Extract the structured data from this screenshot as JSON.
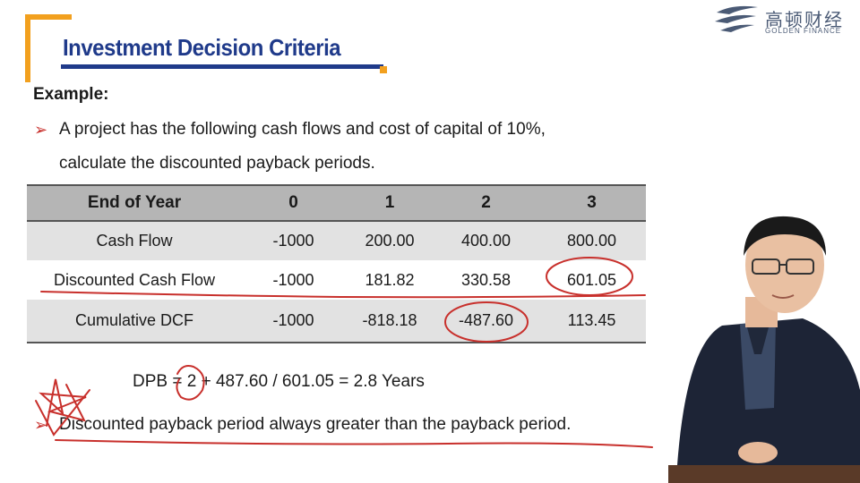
{
  "slide": {
    "title": "Investment Decision Criteria",
    "example_label": "Example:",
    "problem_line1": "A project has the following cash flows and cost of capital of 10%,",
    "problem_line2": "calculate the discounted payback periods.",
    "bullet_glyph": "➢",
    "formula": "DPB = 2 + 487.60 / 601.05 = 2.8 Years",
    "note": "Discounted payback period always greater than the payback period."
  },
  "logo": {
    "chinese": "高顿财经",
    "english": "GOLDEN FINANCE"
  },
  "table": {
    "headers": [
      "End of Year",
      "0",
      "1",
      "2",
      "3"
    ],
    "rows": [
      [
        "Cash Flow",
        "-1000",
        "200.00",
        "400.00",
        "800.00"
      ],
      [
        "Discounted Cash Flow",
        "-1000",
        "181.82",
        "330.58",
        "601.05"
      ],
      [
        "Cumulative DCF",
        "-1000",
        "-818.18",
        "-487.60",
        "113.45"
      ]
    ]
  },
  "colors": {
    "title_blue": "#1f3a8a",
    "accent_orange": "#f2a01e",
    "ink_red": "#c8302c",
    "header_gray": "#b5b5b5",
    "row_gray": "#e2e2e2"
  }
}
